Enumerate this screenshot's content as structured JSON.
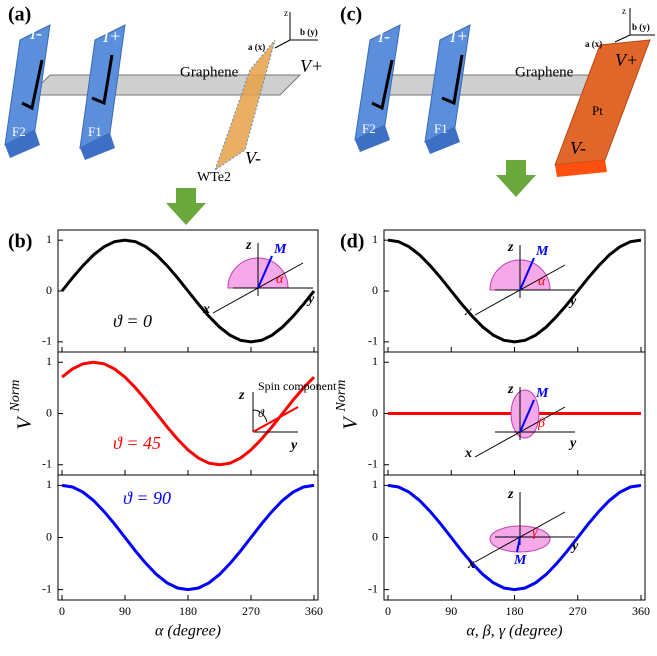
{
  "panel_labels": [
    "(a)",
    "(b)",
    "(c)",
    "(d)"
  ],
  "schematic_a": {
    "labels": [
      "I-",
      "I+",
      "Graphene",
      "F2",
      "F1",
      "WTe2",
      "V+",
      "V-",
      "a (x)",
      "b (y)",
      "z"
    ]
  },
  "schematic_c": {
    "labels": [
      "I-",
      "I+",
      "Graphene",
      "F2",
      "F1",
      "Pt",
      "V+",
      "V-",
      "a (x)",
      "b (y)",
      "z"
    ]
  },
  "chart_data": [
    {
      "type": "line",
      "x": [
        0,
        15,
        30,
        45,
        60,
        75,
        90,
        105,
        120,
        135,
        150,
        165,
        180,
        195,
        210,
        225,
        240,
        255,
        270,
        285,
        300,
        315,
        330,
        345,
        360
      ],
      "series": [
        {
          "color": "#000000",
          "values": [
            0,
            0.26,
            0.5,
            0.71,
            0.87,
            0.97,
            1,
            0.97,
            0.87,
            0.71,
            0.5,
            0.26,
            0,
            -0.26,
            -0.5,
            -0.71,
            -0.87,
            -0.97,
            -1,
            -0.97,
            -0.87,
            -0.71,
            -0.5,
            -0.26,
            0
          ]
        }
      ],
      "xlim": [
        0,
        360
      ],
      "xticks": [
        0,
        90,
        180,
        270,
        360
      ],
      "ylim": [
        -1.2,
        1.2
      ],
      "yticks": [
        -1,
        0,
        1
      ],
      "annotation": "ϑ = 0",
      "inset_labels": [
        "z",
        "M",
        "α",
        "x",
        "y"
      ]
    },
    {
      "type": "line",
      "x": [
        0,
        15,
        30,
        45,
        60,
        75,
        90,
        105,
        120,
        135,
        150,
        165,
        180,
        195,
        210,
        225,
        240,
        255,
        270,
        285,
        300,
        315,
        330,
        345,
        360
      ],
      "series": [
        {
          "color": "#ff0000",
          "values": [
            0.71,
            0.87,
            0.97,
            1,
            0.97,
            0.87,
            0.71,
            0.5,
            0.26,
            0,
            -0.26,
            -0.5,
            -0.71,
            -0.87,
            -0.97,
            -1,
            -0.97,
            -0.87,
            -0.71,
            -0.5,
            -0.26,
            0,
            0.26,
            0.5,
            0.71
          ]
        }
      ],
      "xlim": [
        0,
        360
      ],
      "xticks": [
        0,
        90,
        180,
        270,
        360
      ],
      "ylim": [
        -1.2,
        1.2
      ],
      "yticks": [
        -1,
        0,
        1
      ],
      "ylabel": "V",
      "ylabel_sup": "Norm",
      "annotation": "ϑ = 45",
      "inset_labels": [
        "z",
        "Spin component",
        "ϑ",
        "y"
      ]
    },
    {
      "type": "line",
      "x": [
        0,
        15,
        30,
        45,
        60,
        75,
        90,
        105,
        120,
        135,
        150,
        165,
        180,
        195,
        210,
        225,
        240,
        255,
        270,
        285,
        300,
        315,
        330,
        345,
        360
      ],
      "series": [
        {
          "color": "#0000ff",
          "values": [
            1,
            0.97,
            0.87,
            0.71,
            0.5,
            0.26,
            0,
            -0.26,
            -0.5,
            -0.71,
            -0.87,
            -0.97,
            -1,
            -0.97,
            -0.87,
            -0.71,
            -0.5,
            -0.26,
            0,
            0.26,
            0.5,
            0.71,
            0.87,
            0.97,
            1
          ]
        }
      ],
      "xlim": [
        0,
        360
      ],
      "xticks": [
        0,
        90,
        180,
        270,
        360
      ],
      "ylim": [
        -1.2,
        1.2
      ],
      "yticks": [
        -1,
        0,
        1
      ],
      "xlabel": "α  (degree)",
      "annotation": "ϑ = 90"
    },
    {
      "type": "line",
      "x": [
        0,
        15,
        30,
        45,
        60,
        75,
        90,
        105,
        120,
        135,
        150,
        165,
        180,
        195,
        210,
        225,
        240,
        255,
        270,
        285,
        300,
        315,
        330,
        345,
        360
      ],
      "series": [
        {
          "color": "#000000",
          "values": [
            1,
            0.97,
            0.87,
            0.71,
            0.5,
            0.26,
            0,
            -0.26,
            -0.5,
            -0.71,
            -0.87,
            -0.97,
            -1,
            -0.97,
            -0.87,
            -0.71,
            -0.5,
            -0.26,
            0,
            0.26,
            0.5,
            0.71,
            0.87,
            0.97,
            1
          ]
        }
      ],
      "xlim": [
        0,
        360
      ],
      "xticks": [
        0,
        90,
        180,
        270,
        360
      ],
      "ylim": [
        -1.2,
        1.2
      ],
      "yticks": [
        -1,
        0,
        1
      ],
      "inset_labels": [
        "z",
        "M",
        "α",
        "x",
        "y"
      ]
    },
    {
      "type": "line",
      "x": [
        0,
        15,
        30,
        45,
        60,
        75,
        90,
        105,
        120,
        135,
        150,
        165,
        180,
        195,
        210,
        225,
        240,
        255,
        270,
        285,
        300,
        315,
        330,
        345,
        360
      ],
      "series": [
        {
          "color": "#ff0000",
          "values": [
            0,
            0,
            0,
            0,
            0,
            0,
            0,
            0,
            0,
            0,
            0,
            0,
            0,
            0,
            0,
            0,
            0,
            0,
            0,
            0,
            0,
            0,
            0,
            0,
            0
          ]
        }
      ],
      "xlim": [
        0,
        360
      ],
      "xticks": [
        0,
        90,
        180,
        270,
        360
      ],
      "ylim": [
        -1.2,
        1.2
      ],
      "yticks": [
        -1,
        0,
        1
      ],
      "ylabel": "V",
      "ylabel_sup": "Norm",
      "inset_labels": [
        "z",
        "M",
        "β",
        "x",
        "y"
      ]
    },
    {
      "type": "line",
      "x": [
        0,
        15,
        30,
        45,
        60,
        75,
        90,
        105,
        120,
        135,
        150,
        165,
        180,
        195,
        210,
        225,
        240,
        255,
        270,
        285,
        300,
        315,
        330,
        345,
        360
      ],
      "series": [
        {
          "color": "#0000ff",
          "values": [
            1,
            0.97,
            0.87,
            0.71,
            0.5,
            0.26,
            0,
            -0.26,
            -0.5,
            -0.71,
            -0.87,
            -0.97,
            -1,
            -0.97,
            -0.87,
            -0.71,
            -0.5,
            -0.26,
            0,
            0.26,
            0.5,
            0.71,
            0.87,
            0.97,
            1
          ]
        }
      ],
      "xlim": [
        0,
        360
      ],
      "xticks": [
        0,
        90,
        180,
        270,
        360
      ],
      "ylim": [
        -1.2,
        1.2
      ],
      "yticks": [
        -1,
        0,
        1
      ],
      "xlabel": "α, β, γ (degree)",
      "inset_labels": [
        "z",
        "γ",
        "M",
        "x",
        "y"
      ]
    }
  ]
}
